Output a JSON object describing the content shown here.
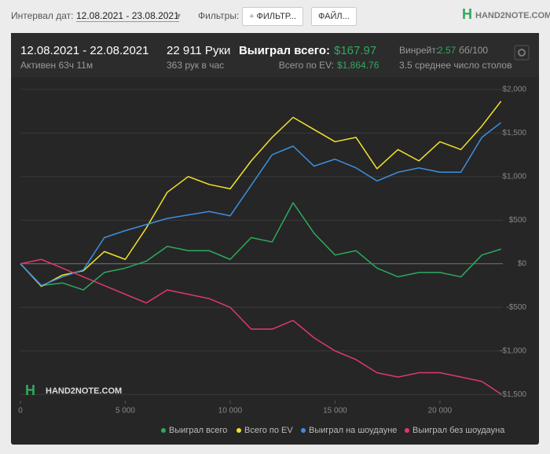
{
  "toolbar": {
    "date_label": "Интервал дат:",
    "date_value": "12.08.2021 - 23.08.2021",
    "filters_label": "Фильтры:",
    "filter_button": "ФИЛЬТР...",
    "file_button": "ФАЙЛ...",
    "logo": "HAND2NOTE.COM"
  },
  "stats": {
    "period": "12.08.2021 - 22.08.2021",
    "active": "Активен 63ч 11м",
    "hands": "22 911 Руки",
    "hands_per_hour": "363 рук в час",
    "won_label": "Выиграл всего:",
    "won_value": "$167.97",
    "ev_label": "Всего по EV:",
    "ev_value": "$1,864.76",
    "winrate_label": "Винрейт:",
    "winrate_value": "2.57",
    "winrate_unit": "бб/100",
    "tables": "3.5 среднее число столов"
  },
  "watermark": "HAND2NOTE.COM",
  "chart_data": {
    "type": "line",
    "x": [
      0,
      1000,
      2000,
      3000,
      4000,
      5000,
      6000,
      7000,
      8000,
      9000,
      10000,
      11000,
      12000,
      13000,
      14000,
      15000,
      16000,
      17000,
      18000,
      19000,
      20000,
      21000,
      22000,
      22911
    ],
    "xlim": [
      0,
      23000
    ],
    "xticks": [
      0,
      {
        "value": 5000,
        "label": "5 000"
      },
      {
        "value": 10000,
        "label": "10 000"
      },
      {
        "value": 15000,
        "label": "15 000"
      },
      {
        "value": 20000,
        "label": "20 000"
      }
    ],
    "ylim": [
      -1570,
      2080
    ],
    "yticks": [
      {
        "value": 2000,
        "label": "$2,000"
      },
      {
        "value": 1500,
        "label": "$1,500"
      },
      {
        "value": 1000,
        "label": "$1,000"
      },
      {
        "value": 500,
        "label": "$500"
      },
      {
        "value": 0,
        "label": "$0"
      },
      {
        "value": -500,
        "label": "-$500"
      },
      {
        "value": -1000,
        "label": "-$1,000"
      },
      {
        "value": -1500,
        "label": "-$1,500"
      }
    ],
    "grid": true,
    "series": [
      {
        "name": "Выиграл всего",
        "color": "#2eaa5e",
        "values": [
          0,
          -250,
          -220,
          -300,
          -100,
          -50,
          30,
          200,
          150,
          150,
          50,
          300,
          250,
          700,
          350,
          100,
          150,
          -50,
          -150,
          -100,
          -100,
          -150,
          100,
          168
        ]
      },
      {
        "name": "Всего по EV",
        "color": "#f2e22c",
        "values": [
          0,
          -260,
          -130,
          -80,
          140,
          50,
          410,
          820,
          1000,
          910,
          860,
          1180,
          1450,
          1680,
          1540,
          1400,
          1450,
          1090,
          1310,
          1180,
          1400,
          1310,
          1580,
          1865
        ]
      },
      {
        "name": "Выиграл на шоудауне",
        "color": "#3d8fe0",
        "values": [
          0,
          -250,
          -150,
          -70,
          300,
          380,
          450,
          520,
          560,
          600,
          550,
          900,
          1250,
          1350,
          1120,
          1200,
          1100,
          950,
          1050,
          1100,
          1050,
          1050,
          1450,
          1620
        ]
      },
      {
        "name": "Выиграл без шоудауна",
        "color": "#e0386e",
        "values": [
          0,
          50,
          -50,
          -150,
          -250,
          -350,
          -450,
          -300,
          -350,
          -400,
          -500,
          -750,
          -750,
          -650,
          -850,
          -1000,
          -1100,
          -1250,
          -1300,
          -1250,
          -1250,
          -1300,
          -1350,
          -1495
        ]
      }
    ]
  }
}
